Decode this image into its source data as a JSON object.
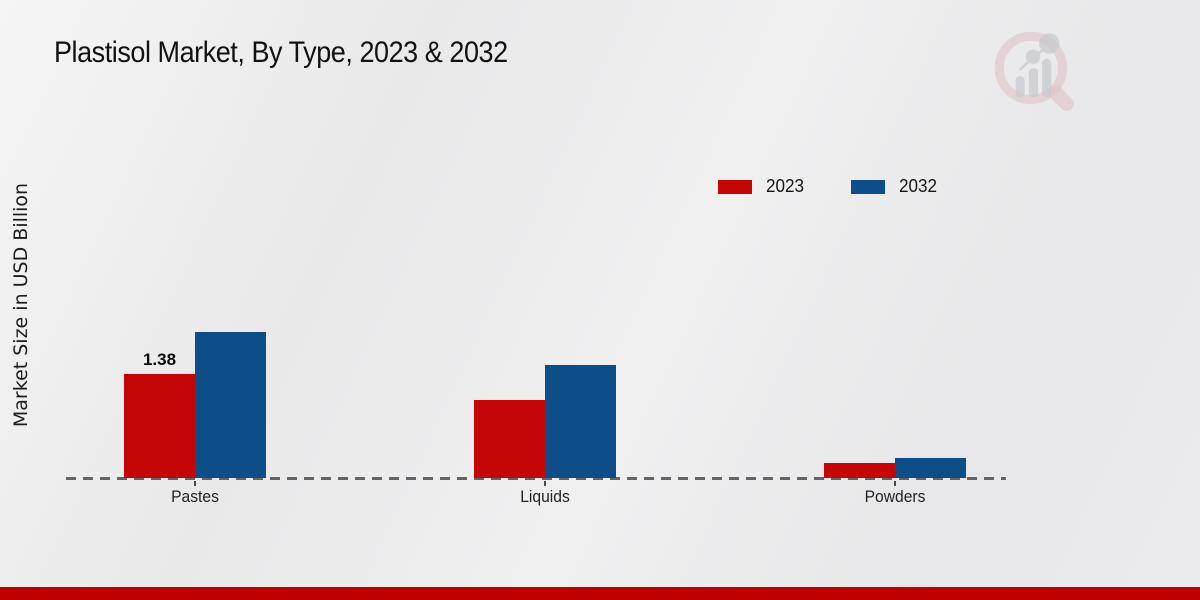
{
  "page": {
    "footer_bar_color": "#bd0101",
    "watermark": "market-research-future-magnifier-chart-logo"
  },
  "chart_data": {
    "type": "bar",
    "title": "Plastisol Market, By Type, 2023 & 2032",
    "ylabel": "Market Size in USD Billion",
    "xlabel": "",
    "categories": [
      "Pastes",
      "Liquids",
      "Powders"
    ],
    "series": [
      {
        "name": "2023",
        "color": "#c40606",
        "values": [
          1.38,
          1.04,
          0.2
        ]
      },
      {
        "name": "2032",
        "color": "#0d4e89",
        "values": [
          1.94,
          1.5,
          0.27
        ]
      }
    ],
    "annotations": [
      {
        "category": "Pastes",
        "series": "2023",
        "text": "1.38"
      }
    ],
    "ylim": [
      0,
      2.2
    ],
    "grid": false,
    "legend_position": "top-right",
    "baseline_style": "dashed"
  }
}
